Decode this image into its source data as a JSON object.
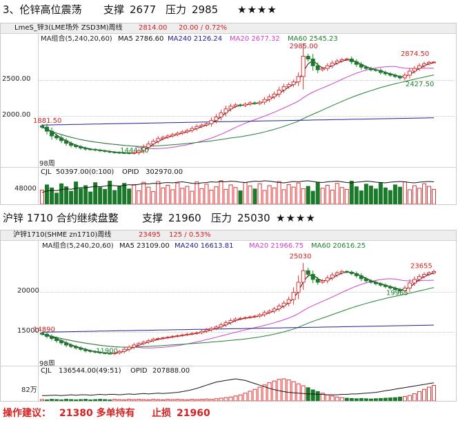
{
  "heading1": {
    "title": "3、伦锌高位震荡",
    "support_label": "支撑",
    "support_value": "2677",
    "pressure_label": "压力",
    "pressure_value": "2985",
    "stars": "★★★★"
  },
  "heading2": {
    "title": "沪锌 1710 合约继续盘整",
    "support_label": "支撑",
    "support_value": "21960",
    "pressure_label": "压力",
    "pressure_value": "25030",
    "stars": "★★★★"
  },
  "footer": {
    "advice_label": "操作建议：",
    "advice_value": "21380 多单持有",
    "stop_label": "止损",
    "stop_value": "21960"
  },
  "colors": {
    "up": "#e03030",
    "down": "#1a7a2a",
    "ma5": "#111111",
    "ma20": "#d040d0",
    "ma60": "#208030",
    "ma240": "#202090"
  },
  "chart_data": [
    {
      "type": "candlestick",
      "window_title": "LmeS_锌3(LME场外 ZSD3M)周线",
      "last_price": "2814.00",
      "change": "20.00 / 0.72%",
      "ma_group_label": "MA组合(5,240,20,60)",
      "ma5_label": "MA5 2786.60",
      "ma240_label": "MA240 2126.24",
      "ma20_label": "MA20 2677.32",
      "ma60_label": "MA60 2545.23",
      "y_ticks": [
        "2500.00",
        "2000.00"
      ],
      "y_tick_values": [
        2500,
        2000
      ],
      "ylim": [
        1300,
        3100
      ],
      "annotations": [
        {
          "text": "2985.00",
          "index": 54,
          "value": 2985,
          "color": "#d02020"
        },
        {
          "text": "2874.50",
          "index": 77,
          "value": 2874.5,
          "color": "#d02020"
        },
        {
          "text": "2427.50",
          "index": 78,
          "value": 2427.5,
          "color": "#208030"
        },
        {
          "text": "1881.50",
          "index": 1,
          "value": 1881.5,
          "color": "#d02020"
        },
        {
          "text": "1444.50",
          "index": 19,
          "value": 1444.5,
          "color": "#208030"
        }
      ],
      "period_label": "98周",
      "closes": [
        1850,
        1790,
        1720,
        1690,
        1650,
        1610,
        1580,
        1560,
        1540,
        1525,
        1520,
        1510,
        1500,
        1490,
        1480,
        1475,
        1470,
        1468,
        1462,
        1470,
        1500,
        1550,
        1600,
        1640,
        1680,
        1700,
        1720,
        1740,
        1760,
        1780,
        1800,
        1830,
        1860,
        1880,
        1900,
        1950,
        2000,
        2060,
        2120,
        2160,
        2180,
        2170,
        2190,
        2210,
        2200,
        2220,
        2260,
        2300,
        2340,
        2400,
        2450,
        2480,
        2520,
        2600,
        2900,
        2860,
        2760,
        2700,
        2720,
        2760,
        2800,
        2830,
        2850,
        2860,
        2820,
        2780,
        2740,
        2720,
        2700,
        2690,
        2660,
        2640,
        2620,
        2600,
        2580,
        2620,
        2680,
        2720,
        2760,
        2790,
        2810,
        2814
      ],
      "volume_label": "CJL",
      "volume_value": "50397.00(0:100)",
      "opid_label": "OPID",
      "opid_value": "302970.00",
      "volume_tick": "48000",
      "volumes": [
        38,
        52,
        44,
        30,
        55,
        47,
        35,
        60,
        42,
        50,
        33,
        58,
        45,
        40,
        62,
        37,
        49,
        56,
        41,
        53,
        36,
        59,
        46,
        34,
        61,
        44,
        51,
        39,
        57,
        43,
        48,
        35,
        60,
        42,
        54,
        38,
        47,
        63,
        40,
        52,
        45,
        36,
        58,
        49,
        41,
        55,
        37,
        50,
        44,
        61,
        39,
        53,
        46,
        57,
        42,
        48,
        35,
        59,
        43,
        51,
        38,
        56,
        45,
        40,
        62,
        47,
        36,
        54,
        49,
        41,
        58,
        44,
        37,
        52,
        46,
        60,
        39,
        50,
        43,
        55,
        48,
        40
      ],
      "opid": [
        30,
        34,
        36,
        35,
        38,
        40,
        39,
        42,
        44,
        43,
        45,
        47,
        46,
        48,
        50,
        49,
        48,
        50,
        52,
        51,
        53,
        55,
        54,
        56,
        55,
        57,
        58,
        57,
        59,
        60,
        58,
        56,
        55,
        57,
        58,
        60,
        59,
        61,
        60,
        62,
        61,
        59,
        58,
        60,
        62,
        61,
        63,
        62,
        60,
        58,
        57,
        59,
        61,
        60,
        62,
        63,
        61,
        59,
        58,
        60,
        61,
        62,
        60,
        58,
        57,
        59,
        60,
        62,
        61,
        59,
        58,
        57,
        59,
        60,
        61,
        60,
        58,
        57,
        59,
        60,
        61,
        60
      ]
    },
    {
      "type": "candlestick",
      "window_title": "沪锌1710(SHME zn1710)周线",
      "last_price": "23495",
      "change": "125 / 0.53%",
      "ma_group_label": "MA组合(5,240,20,60)",
      "ma5_label": "MA5 23109.00",
      "ma240_label": "MA240 16613.81",
      "ma20_label": "MA20 21966.75",
      "ma60_label": "MA60 20616.25",
      "y_ticks": [
        "20000",
        "15000"
      ],
      "y_tick_values": [
        20000,
        15000
      ],
      "ylim": [
        11000,
        26500
      ],
      "annotations": [
        {
          "text": "25030",
          "index": 54,
          "value": 25030,
          "color": "#d02020"
        },
        {
          "text": "23655",
          "index": 79,
          "value": 23655,
          "color": "#d02020"
        },
        {
          "text": "19965",
          "index": 74,
          "value": 19965,
          "color": "#208030"
        },
        {
          "text": "14890",
          "index": 1,
          "value": 14890,
          "color": "#d02020"
        },
        {
          "text": "11900",
          "index": 14,
          "value": 11900,
          "color": "#208030"
        }
      ],
      "period_label": "98周",
      "closes": [
        14800,
        14500,
        14200,
        13900,
        13600,
        13300,
        13100,
        12900,
        12700,
        12500,
        12400,
        12300,
        12200,
        12150,
        12100,
        12200,
        12400,
        12700,
        13000,
        13300,
        13500,
        13700,
        13900,
        14100,
        14200,
        14300,
        14400,
        14500,
        14600,
        14700,
        14800,
        14900,
        15000,
        15200,
        15400,
        15600,
        15800,
        16100,
        16400,
        16700,
        16900,
        17000,
        17100,
        17200,
        17300,
        17500,
        17800,
        18000,
        18300,
        18700,
        19100,
        19600,
        20600,
        22000,
        23600,
        23100,
        22400,
        22000,
        22200,
        22600,
        23000,
        23300,
        23500,
        23400,
        23200,
        22900,
        22500,
        22200,
        22000,
        21800,
        21600,
        21400,
        21200,
        21000,
        20800,
        21200,
        21900,
        22400,
        22800,
        23100,
        23300,
        23495
      ],
      "volume_label": "CJL",
      "volume_value": "136544.00(49:51)",
      "opid_label": "OPID",
      "opid_value": "207888.00",
      "volume_tick": "82万",
      "volumes": [
        5,
        4,
        6,
        5,
        4,
        6,
        5,
        4,
        5,
        6,
        4,
        5,
        6,
        5,
        4,
        6,
        5,
        4,
        6,
        5,
        6,
        5,
        4,
        6,
        5,
        4,
        6,
        5,
        6,
        5,
        4,
        6,
        5,
        6,
        7,
        6,
        8,
        10,
        12,
        14,
        18,
        22,
        28,
        35,
        42,
        50,
        58,
        66,
        72,
        78,
        80,
        76,
        70,
        62,
        55,
        48,
        40,
        34,
        28,
        22,
        18,
        14,
        12,
        10,
        9,
        8,
        9,
        8,
        7,
        8,
        9,
        10,
        11,
        12,
        14,
        16,
        20,
        26,
        34,
        42,
        50,
        56
      ],
      "opid": [
        10,
        10,
        11,
        11,
        10,
        11,
        12,
        11,
        12,
        12,
        11,
        12,
        13,
        12,
        13,
        13,
        12,
        13,
        14,
        13,
        14,
        15,
        14,
        15,
        16,
        15,
        16,
        17,
        18,
        20,
        22,
        25,
        28,
        32,
        36,
        40,
        44,
        46,
        48,
        50,
        52,
        50,
        48,
        44,
        40,
        36,
        32,
        28,
        25,
        22,
        20,
        18,
        17,
        16,
        15,
        14,
        14,
        13,
        13,
        12,
        12,
        12,
        13,
        13,
        14,
        14,
        15,
        16,
        17,
        18,
        20,
        22,
        24,
        26,
        28,
        30,
        32,
        34,
        36,
        38,
        40,
        42
      ]
    }
  ]
}
